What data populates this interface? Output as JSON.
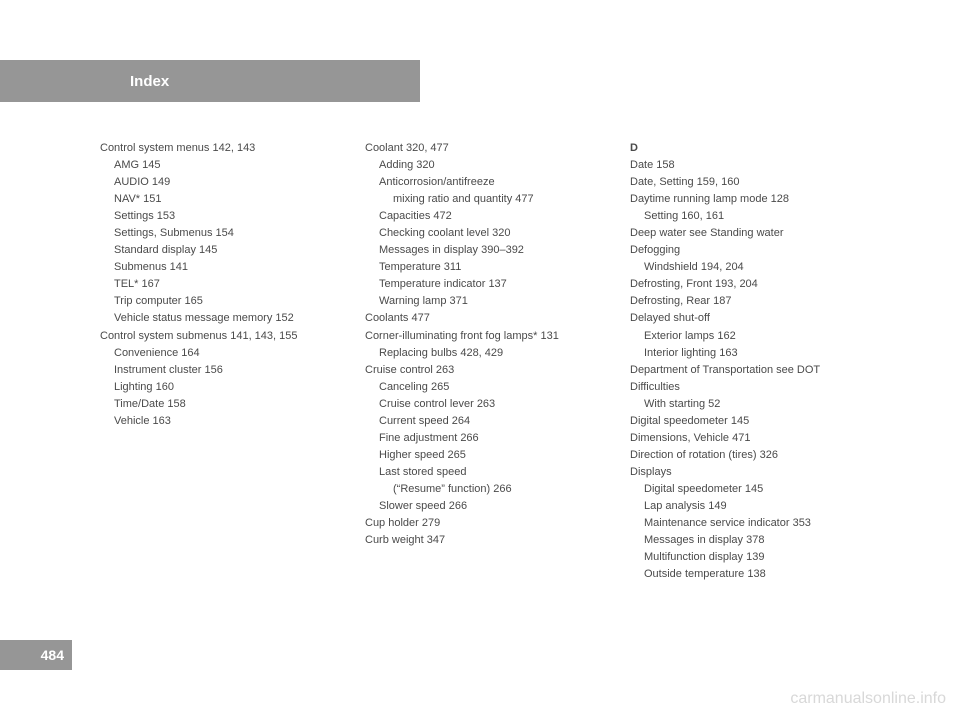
{
  "header": "Index",
  "page_number": "484",
  "watermark": "carmanualsonline.info",
  "col1": [
    {
      "t": "Control system menus   142, 143",
      "i": 0
    },
    {
      "t": "AMG   145",
      "i": 1
    },
    {
      "t": "AUDIO   149",
      "i": 1
    },
    {
      "t": "NAV*   151",
      "i": 1
    },
    {
      "t": "Settings   153",
      "i": 1
    },
    {
      "t": "Settings, Submenus   154",
      "i": 1
    },
    {
      "t": "Standard display   145",
      "i": 1
    },
    {
      "t": "Submenus   141",
      "i": 1
    },
    {
      "t": "TEL*   167",
      "i": 1
    },
    {
      "t": "Trip computer   165",
      "i": 1
    },
    {
      "t": "Vehicle status message memory   152",
      "i": 1
    },
    {
      "t": "Control system submenus   141, 143, 155",
      "i": 0
    },
    {
      "t": "Convenience   164",
      "i": 1
    },
    {
      "t": "Instrument cluster   156",
      "i": 1
    },
    {
      "t": "Lighting   160",
      "i": 1
    },
    {
      "t": "Time/Date   158",
      "i": 1
    },
    {
      "t": "Vehicle   163",
      "i": 1
    }
  ],
  "col2": [
    {
      "t": "Coolant   320, 477",
      "i": 0
    },
    {
      "t": "Adding   320",
      "i": 1
    },
    {
      "t": "Anticorrosion/antifreeze",
      "i": 1
    },
    {
      "t": "mixing ratio and quantity   477",
      "i": 2
    },
    {
      "t": "Capacities   472",
      "i": 1
    },
    {
      "t": "Checking coolant level   320",
      "i": 1
    },
    {
      "t": "Messages in display   390–392",
      "i": 1
    },
    {
      "t": "Temperature   311",
      "i": 1
    },
    {
      "t": "Temperature indicator   137",
      "i": 1
    },
    {
      "t": "Warning lamp   371",
      "i": 1
    },
    {
      "t": "Coolants   477",
      "i": 0
    },
    {
      "t": "Corner-illuminating front fog lamps*   131",
      "i": 0
    },
    {
      "t": "Replacing bulbs   428, 429",
      "i": 1
    },
    {
      "t": "Cruise control   263",
      "i": 0
    },
    {
      "t": "Canceling   265",
      "i": 1
    },
    {
      "t": "Cruise control lever   263",
      "i": 1
    },
    {
      "t": "Current speed   264",
      "i": 1
    },
    {
      "t": "Fine adjustment   266",
      "i": 1
    },
    {
      "t": "Higher speed   265",
      "i": 1
    },
    {
      "t": "Last stored speed",
      "i": 1
    },
    {
      "t": "(“Resume” function)   266",
      "i": 2
    },
    {
      "t": "Slower speed   266",
      "i": 1
    },
    {
      "t": "Cup holder   279",
      "i": 0
    },
    {
      "t": "Curb weight   347",
      "i": 0
    }
  ],
  "col3": [
    {
      "t": "D",
      "i": 0,
      "b": true
    },
    {
      "t": "Date   158",
      "i": 0
    },
    {
      "t": "Date, Setting   159, 160",
      "i": 0
    },
    {
      "t": "Daytime running lamp mode   128",
      "i": 0
    },
    {
      "t": "Setting   160, 161",
      "i": 1
    },
    {
      "t": "Deep water see Standing water",
      "i": 0
    },
    {
      "t": "Defogging",
      "i": 0
    },
    {
      "t": "Windshield   194, 204",
      "i": 1
    },
    {
      "t": "Defrosting, Front   193, 204",
      "i": 0
    },
    {
      "t": "Defrosting, Rear   187",
      "i": 0
    },
    {
      "t": "Delayed shut-off",
      "i": 0
    },
    {
      "t": "Exterior lamps   162",
      "i": 1
    },
    {
      "t": "Interior lighting   163",
      "i": 1
    },
    {
      "t": "Department of Transportation see DOT",
      "i": 0
    },
    {
      "t": "Difficulties",
      "i": 0
    },
    {
      "t": "With starting   52",
      "i": 1
    },
    {
      "t": "Digital speedometer   145",
      "i": 0
    },
    {
      "t": "Dimensions, Vehicle   471",
      "i": 0
    },
    {
      "t": "Direction of rotation (tires)   326",
      "i": 0
    },
    {
      "t": "Displays",
      "i": 0
    },
    {
      "t": "Digital speedometer   145",
      "i": 1
    },
    {
      "t": "Lap analysis   149",
      "i": 1
    },
    {
      "t": "Maintenance service indicator   353",
      "i": 1
    },
    {
      "t": "Messages in display   378",
      "i": 1
    },
    {
      "t": "Multifunction display   139",
      "i": 1
    },
    {
      "t": "Outside temperature   138",
      "i": 1
    }
  ]
}
